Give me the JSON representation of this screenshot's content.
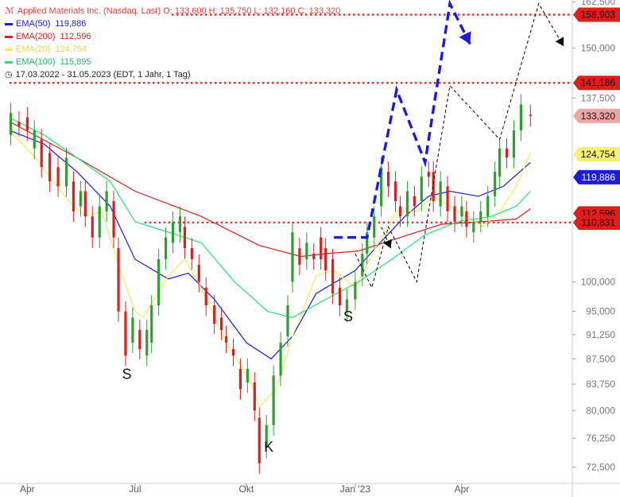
{
  "chart_data": {
    "type": "candlestick",
    "title": "Applied Materials Inc. (Nasdaq, Last)",
    "ohlc_label": "O: 133,600  H: 135,750  L: 132,160  C: 133,320",
    "date_range": "17.03.2022 - 31.05.2023",
    "period": "(EDT, 1 Jahr, 1 Tag)",
    "y_scale": "log",
    "ylim": [
      70.5,
      163
    ],
    "x_range": [
      "2022-03-17",
      "2023-05-31"
    ],
    "x_ticks": [
      {
        "label": "Apr",
        "date": "2022-04-01"
      },
      {
        "label": "Jul",
        "date": "2022-07-01"
      },
      {
        "label": "Okt",
        "date": "2022-10-03"
      },
      {
        "label": "Jan '23",
        "date": "2023-01-03"
      },
      {
        "label": "Apr",
        "date": "2023-04-03"
      }
    ],
    "y_ticks": [
      162.5,
      150,
      137.5,
      100,
      95,
      91.25,
      87.5,
      83.75,
      80,
      76.25,
      72.5
    ],
    "y_tick_labels": [
      "162,500",
      "150,000",
      "137,500",
      "100,000",
      "95,000",
      "91,250",
      "87,500",
      "83,750",
      "80,000",
      "76,250",
      "72,500"
    ],
    "colors": {
      "up": "#2e9e2e",
      "down": "#d92020",
      "level": "#e21b1b",
      "pattern": "#1b1be0",
      "projection": "#000000"
    },
    "emas": [
      {
        "name": "EMA(50)",
        "value_label": "119,886",
        "color": "#1b1be0",
        "points": [
          [
            "2022-03-17",
            130
          ],
          [
            "2022-04-15",
            127
          ],
          [
            "2022-05-13",
            121
          ],
          [
            "2022-06-10",
            114
          ],
          [
            "2022-07-01",
            104
          ],
          [
            "2022-07-29",
            100.5
          ],
          [
            "2022-08-15",
            101.5
          ],
          [
            "2022-09-06",
            97
          ],
          [
            "2022-10-03",
            90
          ],
          [
            "2022-10-24",
            87.5
          ],
          [
            "2022-11-11",
            91
          ],
          [
            "2022-12-01",
            98
          ],
          [
            "2023-01-03",
            102
          ],
          [
            "2023-01-24",
            107
          ],
          [
            "2023-02-14",
            112
          ],
          [
            "2023-03-06",
            116
          ],
          [
            "2023-03-24",
            117
          ],
          [
            "2023-04-17",
            116
          ],
          [
            "2023-05-08",
            118
          ],
          [
            "2023-05-31",
            123
          ]
        ]
      },
      {
        "name": "EMA(200)",
        "value_label": "112,596",
        "color": "#e21b1b",
        "points": [
          [
            "2022-03-17",
            132
          ],
          [
            "2022-05-13",
            124
          ],
          [
            "2022-07-01",
            117
          ],
          [
            "2022-08-26",
            112
          ],
          [
            "2022-10-14",
            106.5
          ],
          [
            "2022-11-18",
            104.5
          ],
          [
            "2022-12-09",
            105
          ],
          [
            "2023-01-06",
            105.5
          ],
          [
            "2023-02-10",
            108
          ],
          [
            "2023-03-17",
            110.5
          ],
          [
            "2023-04-21",
            111
          ],
          [
            "2023-05-19",
            111.5
          ],
          [
            "2023-05-31",
            113.5
          ]
        ]
      },
      {
        "name": "EMA(20)",
        "value_label": "124,754",
        "color": "#f5e85c",
        "points": [
          [
            "2022-03-17",
            130
          ],
          [
            "2022-04-08",
            124
          ],
          [
            "2022-05-06",
            115
          ],
          [
            "2022-05-20",
            112
          ],
          [
            "2022-06-03",
            113
          ],
          [
            "2022-06-17",
            103
          ],
          [
            "2022-07-01",
            95
          ],
          [
            "2022-07-08",
            94
          ],
          [
            "2022-07-29",
            101
          ],
          [
            "2022-08-12",
            104
          ],
          [
            "2022-08-26",
            99
          ],
          [
            "2022-09-16",
            90
          ],
          [
            "2022-10-07",
            84
          ],
          [
            "2022-10-14",
            80.5
          ],
          [
            "2022-10-28",
            83
          ],
          [
            "2022-11-11",
            91
          ],
          [
            "2022-12-01",
            101
          ],
          [
            "2022-12-16",
            102
          ],
          [
            "2023-01-03",
            99
          ],
          [
            "2023-01-20",
            106
          ],
          [
            "2023-02-07",
            113
          ],
          [
            "2023-02-24",
            113
          ],
          [
            "2023-03-10",
            116
          ],
          [
            "2023-03-24",
            114
          ],
          [
            "2023-04-07",
            112
          ],
          [
            "2023-04-21",
            110
          ],
          [
            "2023-05-05",
            113
          ],
          [
            "2023-05-19",
            118
          ],
          [
            "2023-05-31",
            125
          ]
        ]
      },
      {
        "name": "EMA(100)",
        "value_label": "115,895",
        "color": "#27e07a",
        "points": [
          [
            "2022-03-17",
            133
          ],
          [
            "2022-04-15",
            129
          ],
          [
            "2022-05-13",
            124
          ],
          [
            "2022-06-10",
            119
          ],
          [
            "2022-07-01",
            111
          ],
          [
            "2022-07-29",
            109
          ],
          [
            "2022-08-26",
            107
          ],
          [
            "2022-09-23",
            100
          ],
          [
            "2022-10-21",
            95
          ],
          [
            "2022-11-11",
            94
          ],
          [
            "2022-12-09",
            97
          ],
          [
            "2023-01-06",
            100
          ],
          [
            "2023-02-03",
            104
          ],
          [
            "2023-03-03",
            108.5
          ],
          [
            "2023-03-31",
            111
          ],
          [
            "2023-04-28",
            112
          ],
          [
            "2023-05-19",
            114
          ],
          [
            "2023-05-31",
            117
          ]
        ]
      }
    ],
    "candles": [
      [
        "2022-03-18",
        129,
        134
      ],
      [
        "2022-03-25",
        132,
        131
      ],
      [
        "2022-04-01",
        133,
        130
      ],
      [
        "2022-04-07",
        126,
        130
      ],
      [
        "2022-04-13",
        128,
        122
      ],
      [
        "2022-04-20",
        125,
        119
      ],
      [
        "2022-04-27",
        122,
        118
      ],
      [
        "2022-05-04",
        118,
        124
      ],
      [
        "2022-05-10",
        119,
        113
      ],
      [
        "2022-05-16",
        114,
        117
      ],
      [
        "2022-05-20",
        117,
        112
      ],
      [
        "2022-05-26",
        112,
        108
      ],
      [
        "2022-06-01",
        108,
        114
      ],
      [
        "2022-06-07",
        113,
        117
      ],
      [
        "2022-06-13",
        115,
        108
      ],
      [
        "2022-06-17",
        106,
        95
      ],
      [
        "2022-06-23",
        95,
        88
      ],
      [
        "2022-06-29",
        90,
        94
      ],
      [
        "2022-07-05",
        92,
        89
      ],
      [
        "2022-07-11",
        88,
        92
      ],
      [
        "2022-07-15",
        90,
        96
      ],
      [
        "2022-07-21",
        96,
        104
      ],
      [
        "2022-07-27",
        104,
        108
      ],
      [
        "2022-08-02",
        107,
        111
      ],
      [
        "2022-08-08",
        109,
        112
      ],
      [
        "2022-08-12",
        110,
        106
      ],
      [
        "2022-08-18",
        106,
        104
      ],
      [
        "2022-08-24",
        103,
        100
      ],
      [
        "2022-08-30",
        99,
        96
      ],
      [
        "2022-09-06",
        96,
        93
      ],
      [
        "2022-09-12",
        94,
        92
      ],
      [
        "2022-09-16",
        91,
        90
      ],
      [
        "2022-09-22",
        89,
        88
      ],
      [
        "2022-09-28",
        86,
        83
      ],
      [
        "2022-10-04",
        84,
        86
      ],
      [
        "2022-10-10",
        84,
        80
      ],
      [
        "2022-10-14",
        79,
        73
      ],
      [
        "2022-10-20",
        75,
        78
      ],
      [
        "2022-10-26",
        78,
        85
      ],
      [
        "2022-11-01",
        85,
        90
      ],
      [
        "2022-11-07",
        91,
        96
      ],
      [
        "2022-11-11",
        100,
        109
      ],
      [
        "2022-11-17",
        106,
        103
      ],
      [
        "2022-11-23",
        104,
        107
      ],
      [
        "2022-11-29",
        105,
        104
      ],
      [
        "2022-12-05",
        108,
        104
      ],
      [
        "2022-12-09",
        106,
        102
      ],
      [
        "2022-12-15",
        104,
        98
      ],
      [
        "2022-12-21",
        99,
        96
      ],
      [
        "2022-12-27",
        95,
        97
      ],
      [
        "2023-01-03",
        97,
        100
      ],
      [
        "2023-01-09",
        101,
        105
      ],
      [
        "2023-01-13",
        105,
        109
      ],
      [
        "2023-01-19",
        108,
        112
      ],
      [
        "2023-01-25",
        114,
        122
      ],
      [
        "2023-01-31",
        121,
        118
      ],
      [
        "2023-02-06",
        119,
        115
      ],
      [
        "2023-02-10",
        114,
        112
      ],
      [
        "2023-02-16",
        112,
        117
      ],
      [
        "2023-02-22",
        116,
        114
      ],
      [
        "2023-02-28",
        115,
        120
      ],
      [
        "2023-03-06",
        121,
        120
      ],
      [
        "2023-03-10",
        121,
        115
      ],
      [
        "2023-03-16",
        114,
        119
      ],
      [
        "2023-03-22",
        118,
        113
      ],
      [
        "2023-03-28",
        114,
        111
      ],
      [
        "2023-04-03",
        112,
        114
      ],
      [
        "2023-04-07",
        113,
        110
      ],
      [
        "2023-04-13",
        109,
        111
      ],
      [
        "2023-04-19",
        111,
        113
      ],
      [
        "2023-04-25",
        112,
        116
      ],
      [
        "2023-05-01",
        116,
        121
      ],
      [
        "2023-05-05",
        120,
        126
      ],
      [
        "2023-05-11",
        126,
        124
      ],
      [
        "2023-05-17",
        124,
        130
      ],
      [
        "2023-05-23",
        130,
        136
      ],
      [
        "2023-05-31",
        133.6,
        133.32
      ]
    ],
    "levels": [
      {
        "label": "158,903",
        "value": 158.903,
        "from": "2022-08-01"
      },
      {
        "label": "141,186",
        "value": 141.186,
        "from": "2022-03-17"
      },
      {
        "label": "110,831",
        "value": 110.831,
        "from": "2022-07-09"
      }
    ],
    "price_tags": [
      {
        "label": "133,320",
        "value": 133.32,
        "kind": "last"
      },
      {
        "label": "124,754",
        "value": 124.754,
        "kind": "ema20"
      },
      {
        "label": "119,886",
        "value": 119.886,
        "kind": "ema50"
      },
      {
        "label": "112,596",
        "value": 112.596,
        "kind": "ema200"
      }
    ],
    "annotations": [
      {
        "text": "S",
        "date": "2022-06-24",
        "value": 84.5
      },
      {
        "text": "K",
        "date": "2022-10-22",
        "value": 74.5
      },
      {
        "text": "S",
        "date": "2022-12-28",
        "value": 93.4
      }
    ],
    "pattern_lines": [
      {
        "style": "thick-dashed-blue",
        "points": [
          [
            "2022-12-16",
            108
          ],
          [
            "2023-01-13",
            108
          ],
          [
            "2023-02-07",
            139.5
          ],
          [
            "2023-03-03",
            123
          ],
          [
            "2023-03-24",
            162
          ],
          [
            "2023-04-10",
            151
          ]
        ],
        "arrow": "end"
      },
      {
        "style": "thin-dashed-black",
        "points": [
          [
            "2023-01-03",
            105
          ],
          [
            "2023-01-17",
            99
          ],
          [
            "2023-01-31",
            110
          ],
          [
            "2023-02-24",
            100
          ],
          [
            "2023-03-24",
            140.5
          ],
          [
            "2023-05-05",
            128
          ],
          [
            "2023-06-07",
            162
          ],
          [
            "2023-06-28",
            150.5
          ]
        ],
        "arrow": "end"
      },
      {
        "style": "thin-dashed-black",
        "points": [
          [
            "2023-01-25",
            110
          ],
          [
            "2023-02-02",
            106
          ]
        ],
        "arrow": "end"
      }
    ]
  },
  "legend": {
    "title_row": "Applied Materials Inc. (Nasdaq, Last)  O: 133,600  H: 135,750  L: 132,160  C: 133,320",
    "date_row": "17.03.2022 - 31.05.2023    (EDT, 1 Jahr, 1 Tag)"
  }
}
